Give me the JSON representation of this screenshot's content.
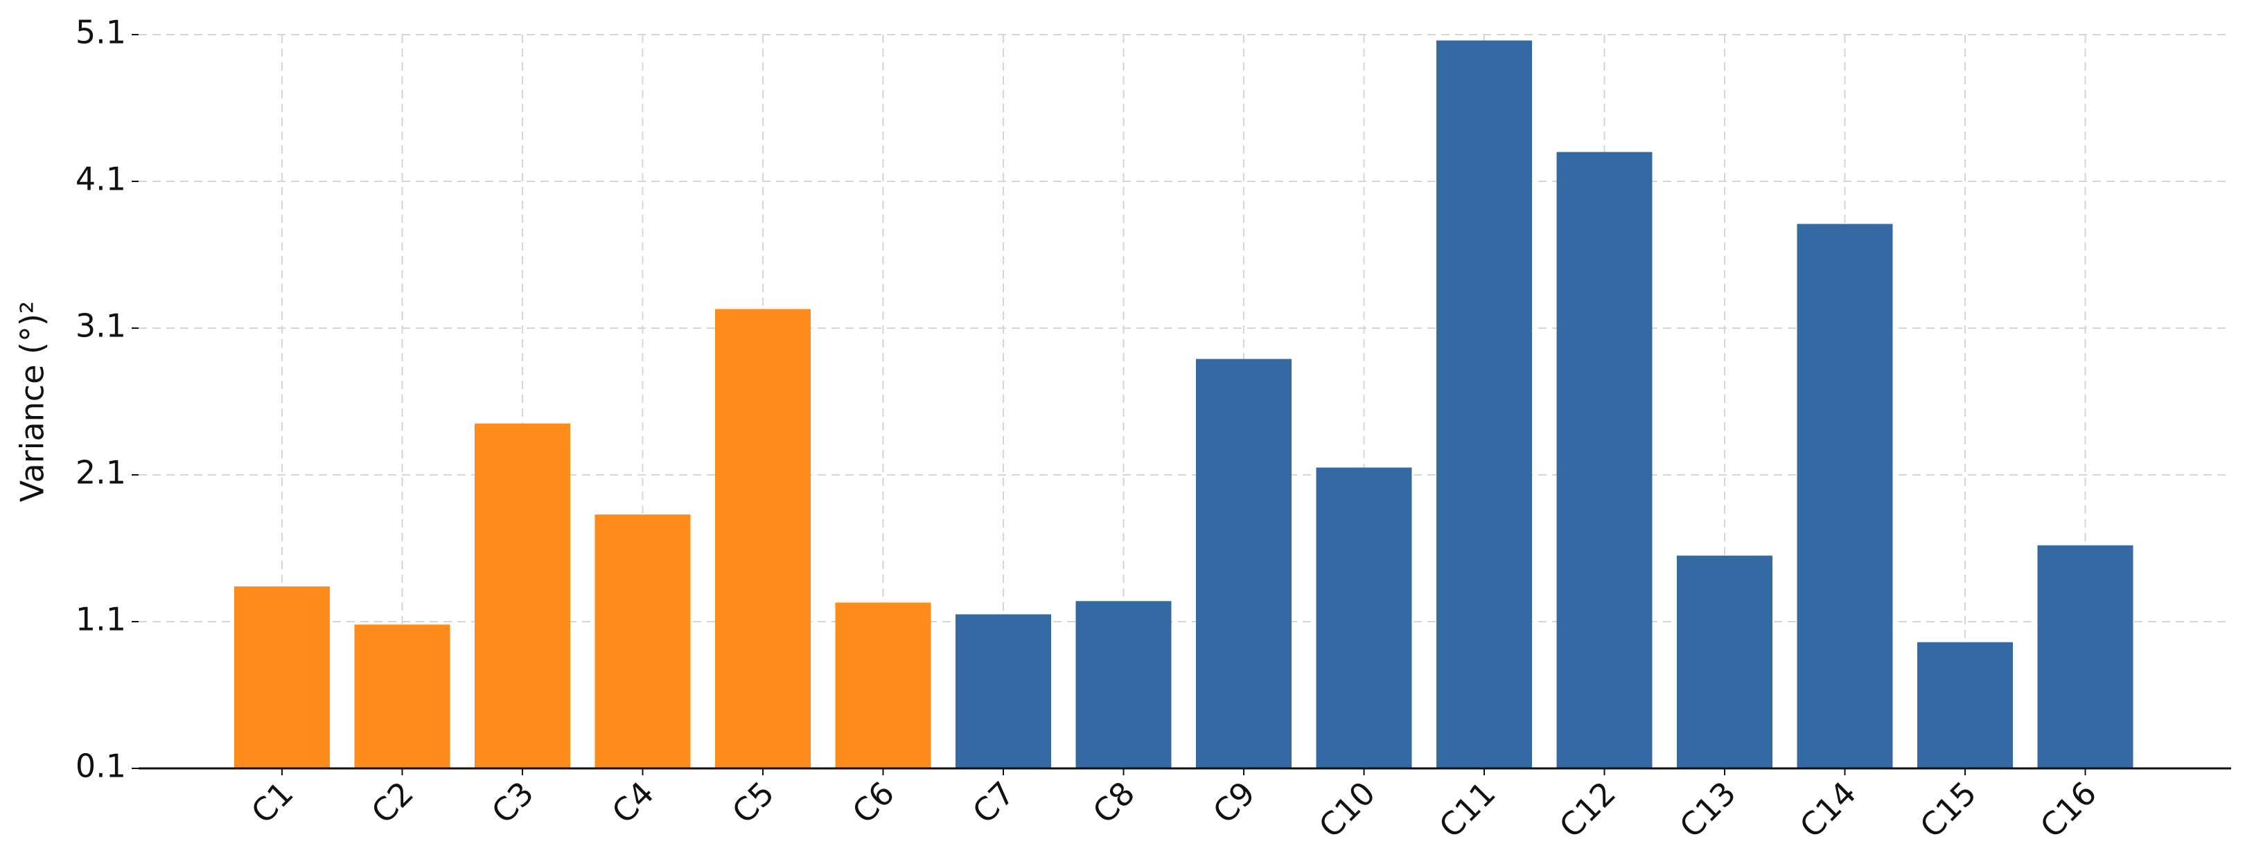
{
  "chart_data": {
    "type": "bar",
    "y_label": "Variance (°)²",
    "categories": [
      "C1",
      "C2",
      "C3",
      "C4",
      "C5",
      "C6",
      "C7",
      "C8",
      "C9",
      "C10",
      "C11",
      "C12",
      "C13",
      "C14",
      "C15",
      "C16"
    ],
    "values": [
      1.34,
      1.08,
      2.45,
      1.83,
      3.23,
      1.23,
      1.15,
      1.24,
      2.89,
      2.15,
      5.06,
      4.3,
      1.55,
      3.81,
      0.96,
      1.62
    ],
    "colors": [
      "#ff8c1a",
      "#ff8c1a",
      "#ff8c1a",
      "#ff8c1a",
      "#ff8c1a",
      "#ff8c1a",
      "#3569a3",
      "#3569a3",
      "#3569a3",
      "#3569a3",
      "#3569a3",
      "#3569a3",
      "#3569a3",
      "#3569a3",
      "#3569a3",
      "#3569a3"
    ],
    "ylim": [
      0.1,
      5.1
    ],
    "yticks": [
      0.1,
      1.1,
      2.1,
      3.1,
      4.1,
      5.1
    ],
    "grid": true
  }
}
